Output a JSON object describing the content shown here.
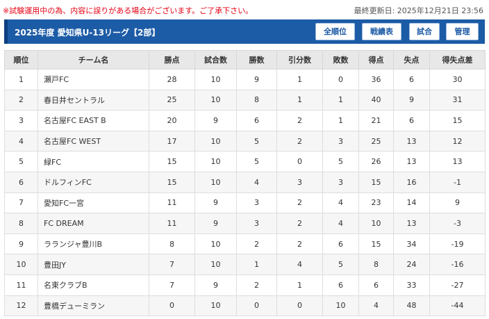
{
  "notice": "※試験運用中の為、内容に誤りがある場合がございます。ご了承下さい。",
  "updated": "最終更新日: 2025年12月21日 23:56",
  "header": {
    "title": "2025年度 愛知県U-13リーグ【2部】",
    "buttons": {
      "standings": "全順位",
      "results": "戦績表",
      "matches": "試合",
      "admin": "管理"
    }
  },
  "table": {
    "columns": [
      "順位",
      "チーム名",
      "勝点",
      "試合数",
      "勝数",
      "引分数",
      "敗数",
      "得点",
      "失点",
      "得失点差"
    ],
    "rows": [
      [
        "1",
        "瀬戸FC",
        "28",
        "10",
        "9",
        "1",
        "0",
        "36",
        "6",
        "30"
      ],
      [
        "2",
        "春日井セントラル",
        "25",
        "10",
        "8",
        "1",
        "1",
        "40",
        "9",
        "31"
      ],
      [
        "3",
        "名古屋FC EAST B",
        "20",
        "9",
        "6",
        "2",
        "1",
        "21",
        "6",
        "15"
      ],
      [
        "4",
        "名古屋FC WEST",
        "17",
        "10",
        "5",
        "2",
        "3",
        "25",
        "13",
        "12"
      ],
      [
        "5",
        "緑FC",
        "15",
        "10",
        "5",
        "0",
        "5",
        "26",
        "13",
        "13"
      ],
      [
        "6",
        "ドルフィンFC",
        "15",
        "10",
        "4",
        "3",
        "3",
        "15",
        "16",
        "-1"
      ],
      [
        "7",
        "愛知FC一宮",
        "11",
        "9",
        "3",
        "2",
        "4",
        "23",
        "14",
        "9"
      ],
      [
        "8",
        "FC DREAM",
        "11",
        "9",
        "3",
        "2",
        "4",
        "10",
        "13",
        "-3"
      ],
      [
        "9",
        "ラランジャ豊川B",
        "8",
        "10",
        "2",
        "2",
        "6",
        "15",
        "34",
        "-19"
      ],
      [
        "10",
        "豊田JY",
        "7",
        "10",
        "1",
        "4",
        "5",
        "8",
        "24",
        "-16"
      ],
      [
        "11",
        "名東クラブB",
        "7",
        "9",
        "2",
        "1",
        "6",
        "6",
        "33",
        "-27"
      ],
      [
        "12",
        "豊橋デューミラン",
        "0",
        "10",
        "0",
        "0",
        "10",
        "4",
        "48",
        "-44"
      ]
    ]
  }
}
